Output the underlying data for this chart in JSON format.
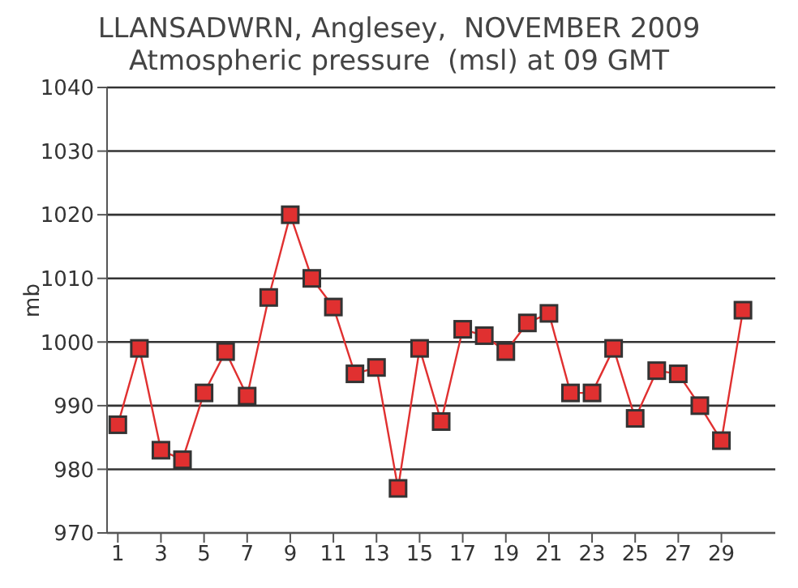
{
  "chart_data": {
    "type": "line",
    "title": "LLANSADWRN, Anglesey,  NOVEMBER 2009",
    "subtitle": "Atmospheric pressure  (msl) at 09 GMT",
    "ylabel": "mb",
    "x": [
      1,
      2,
      3,
      4,
      5,
      6,
      7,
      8,
      9,
      10,
      11,
      12,
      13,
      14,
      15,
      16,
      17,
      18,
      19,
      20,
      21,
      22,
      23,
      24,
      25,
      26,
      27,
      28,
      29,
      30
    ],
    "series": [
      {
        "color": "#e03030",
        "values": [
          987,
          999,
          983,
          981.5,
          992,
          998.5,
          991.5,
          1007,
          1020,
          1010,
          1005.5,
          995,
          996,
          977,
          999,
          987.5,
          1002,
          1001,
          998.5,
          1003,
          1004.5,
          992,
          992,
          999,
          988,
          995.5,
          995,
          990,
          984.5,
          1005
        ]
      }
    ],
    "xlim": [
      0.5,
      31.5
    ],
    "xticks": [
      1,
      3,
      5,
      7,
      9,
      11,
      13,
      15,
      17,
      19,
      21,
      23,
      25,
      27,
      29
    ],
    "ylim": [
      970,
      1040
    ],
    "yticks": [
      970,
      980,
      990,
      1000,
      1010,
      1020,
      1030,
      1040
    ],
    "grid": "y",
    "marker": "square",
    "line_style": "solid"
  }
}
